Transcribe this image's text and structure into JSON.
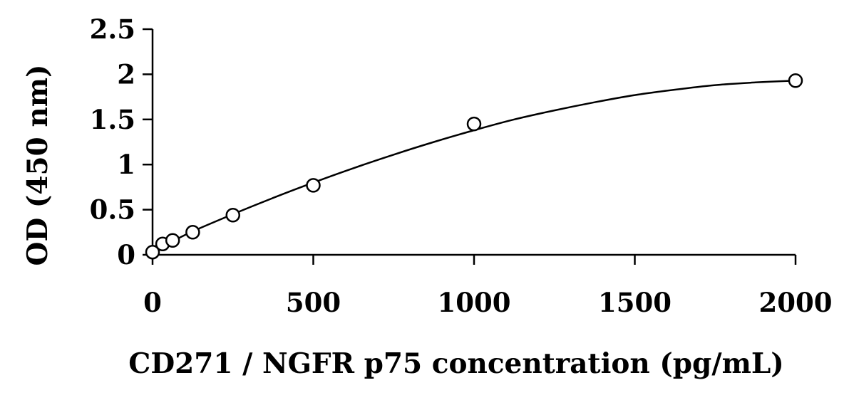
{
  "chart_data": {
    "type": "scatter",
    "title": "",
    "xlabel": "CD271 / NGFR p75 concentration (pg/mL)",
    "ylabel": "OD (450 nm)",
    "xlim": [
      0,
      2000
    ],
    "ylim": [
      0,
      2.5
    ],
    "x_ticks": [
      0,
      500,
      1000,
      1500,
      2000
    ],
    "y_ticks": [
      0,
      0.5,
      1,
      1.5,
      2,
      2.5
    ],
    "x_tick_labels": [
      "0",
      "500",
      "1000",
      "1500",
      "2000"
    ],
    "y_tick_labels": [
      "0",
      "0.5",
      "1",
      "1.5",
      "2",
      "2.5"
    ],
    "grid": false,
    "legend": "none",
    "series": [
      {
        "marker": "open-circle",
        "x": [
          0,
          31.25,
          62.5,
          125,
          250,
          500,
          1000,
          2000
        ],
        "y": [
          0.03,
          0.12,
          0.16,
          0.25,
          0.44,
          0.77,
          1.45,
          1.93
        ]
      }
    ],
    "fit_curve": {
      "type": "smooth-fit",
      "x": [
        0,
        62.5,
        125,
        250,
        375,
        500,
        625,
        750,
        875,
        1000,
        1125,
        1250,
        1375,
        1500,
        1625,
        1750,
        1875,
        2000
      ],
      "y": [
        0.03,
        0.15,
        0.26,
        0.45,
        0.63,
        0.8,
        0.96,
        1.11,
        1.25,
        1.38,
        1.5,
        1.6,
        1.69,
        1.77,
        1.83,
        1.88,
        1.91,
        1.93
      ]
    },
    "colors": {
      "axis": "#000000",
      "marker": "#000000",
      "curve": "#000000"
    }
  }
}
